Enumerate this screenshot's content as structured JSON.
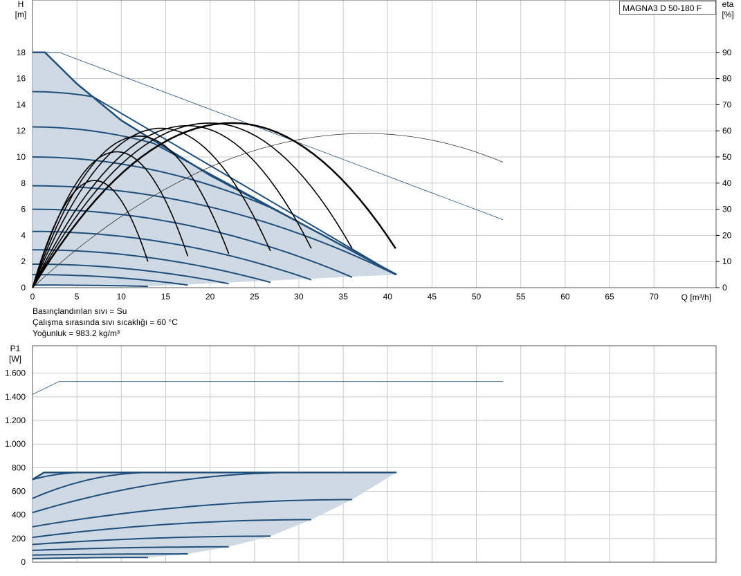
{
  "model_label": "MAGNA3 D 50-180 F",
  "info_lines": [
    "Basınçlandırılan sıvı = Su",
    "Çalışma sırasında sıvı sıcaklığı = 60 °C",
    "Yoğunluk = 983.2 kg/m³"
  ],
  "colors": {
    "curve": "#1f4e7a",
    "fill": "#cfd9e4",
    "efficiency": "#000000",
    "thin": "#1f4e7a",
    "grid": "#c8c8c8"
  },
  "chart_data": [
    {
      "type": "line",
      "id": "qh",
      "xlabel": "Q [m³/h]",
      "ylabel_top": "H",
      "ylabel_unit": "[m]",
      "y2label_top": "eta",
      "y2label_unit": "[%]",
      "xlim": [
        0,
        77
      ],
      "ylim": [
        0,
        20
      ],
      "y2lim": [
        0,
        100
      ],
      "xticks": [
        0,
        5,
        10,
        15,
        20,
        25,
        30,
        35,
        40,
        45,
        50,
        55,
        60,
        65,
        70
      ],
      "yticks": [
        0,
        2,
        4,
        6,
        8,
        10,
        12,
        14,
        16,
        18
      ],
      "y2ticks": [
        0,
        10,
        20,
        30,
        40,
        50,
        60,
        70,
        80,
        90
      ],
      "grid": true,
      "envelope_max_curve": [
        [
          0,
          18
        ],
        [
          1.4,
          18
        ],
        [
          5,
          15.6
        ],
        [
          10,
          12.8
        ],
        [
          20,
          8.6
        ],
        [
          30,
          5
        ],
        [
          41,
          1
        ]
      ],
      "head_curves": [
        {
          "x": [
            0,
            13
          ],
          "y": [
            0.2,
            0.1
          ]
        },
        {
          "x": [
            0,
            17.5
          ],
          "y": [
            1.0,
            0.2
          ]
        },
        {
          "x": [
            0,
            22.1
          ],
          "y": [
            1.8,
            0.3
          ]
        },
        {
          "x": [
            0,
            26.8
          ],
          "y": [
            2.9,
            0.4
          ]
        },
        {
          "x": [
            0,
            31.4
          ],
          "y": [
            4.3,
            0.6
          ]
        },
        {
          "x": [
            0,
            36
          ],
          "y": [
            6.0,
            0.8
          ]
        },
        {
          "x": [
            0,
            40.9
          ],
          "y": [
            7.8,
            1.0
          ]
        },
        {
          "x": [
            0,
            40.9
          ],
          "y": [
            10.0,
            1.0
          ]
        },
        {
          "x": [
            0,
            40.9
          ],
          "y": [
            12.3,
            1.0
          ]
        },
        {
          "x": [
            0,
            40.9
          ],
          "y": [
            15.0,
            1.0
          ]
        }
      ],
      "efficiency_curves": [
        {
          "x": [
            0,
            7,
            13
          ],
          "y": [
            0,
            41,
            10
          ]
        },
        {
          "x": [
            0,
            9.5,
            17.5
          ],
          "y": [
            0,
            52,
            12
          ]
        },
        {
          "x": [
            0,
            12,
            22.1
          ],
          "y": [
            0,
            58,
            13
          ]
        },
        {
          "x": [
            0,
            14.5,
            26.8
          ],
          "y": [
            0,
            61,
            14
          ]
        },
        {
          "x": [
            0,
            17.5,
            31.4
          ],
          "y": [
            0,
            62,
            15
          ]
        },
        {
          "x": [
            0,
            20,
            36
          ],
          "y": [
            0,
            63,
            15
          ]
        },
        {
          "x": [
            0,
            22.5,
            40.9
          ],
          "y": [
            0,
            63,
            15
          ]
        }
      ],
      "thin_max_head": {
        "x": [
          0,
          3,
          53
        ],
        "y": [
          18,
          18,
          5.2
        ]
      },
      "thin_max_efficiency": {
        "x": [
          0,
          37.5,
          53
        ],
        "y": [
          0,
          59,
          48
        ]
      }
    },
    {
      "type": "line",
      "id": "p1",
      "xlabel": "",
      "ylabel_top": "P1",
      "ylabel_unit": "[W]",
      "xlim": [
        0,
        77
      ],
      "ylim": [
        0,
        1700
      ],
      "xticks": [
        0,
        5,
        10,
        15,
        20,
        25,
        30,
        35,
        40,
        45,
        50,
        55,
        60,
        65,
        70
      ],
      "yticks": [
        0,
        200,
        400,
        600,
        800,
        1000,
        1200,
        1400,
        1600
      ],
      "ytick_labels": [
        "0",
        "200",
        "400",
        "600",
        "800",
        "1.000",
        "1.200",
        "1.400",
        "1.600"
      ],
      "grid": true,
      "max_power": 760,
      "power_curves": [
        {
          "x": [
            0,
            13
          ],
          "y": [
            30,
            40
          ]
        },
        {
          "x": [
            0,
            17.5
          ],
          "y": [
            60,
            70
          ]
        },
        {
          "x": [
            0,
            22.1
          ],
          "y": [
            100,
            130
          ]
        },
        {
          "x": [
            0,
            26.8
          ],
          "y": [
            150,
            220
          ]
        },
        {
          "x": [
            0,
            31.4
          ],
          "y": [
            210,
            360
          ]
        },
        {
          "x": [
            0,
            36
          ],
          "y": [
            300,
            530
          ]
        },
        {
          "x": [
            0,
            30
          ],
          "y": [
            420,
            760
          ]
        },
        {
          "x": [
            0,
            13.5
          ],
          "y": [
            540,
            760
          ]
        },
        {
          "x": [
            0,
            6
          ],
          "y": [
            700,
            760
          ]
        }
      ],
      "thin_max_power": {
        "x": [
          0,
          3,
          53
        ],
        "y": [
          1420,
          1530,
          1530
        ]
      }
    }
  ]
}
